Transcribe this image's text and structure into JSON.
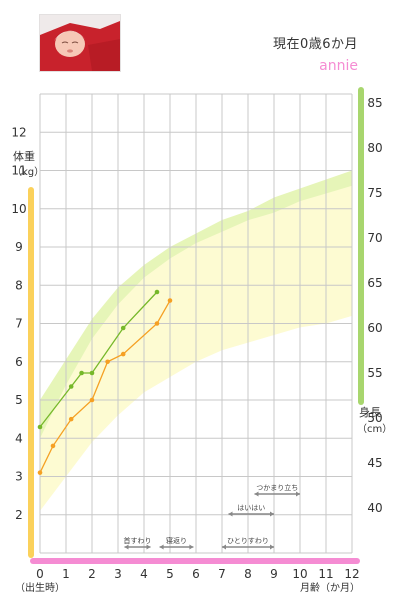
{
  "header": {
    "status_line": "現在0歳6か月",
    "child_name": "annie"
  },
  "icons": {
    "photo": "baby-photo"
  },
  "colors": {
    "weight_line": "#f5a023",
    "height_line": "#76b82a",
    "weight_band": "#fdfbd2",
    "height_band": "#e6f5b8",
    "left_axis": "#fbd15b",
    "right_axis": "#a8d66e",
    "bottom_axis": "#f58cd3"
  },
  "chart_data": {
    "type": "line",
    "x_axis": {
      "ticks": [
        "0",
        "1",
        "2",
        "3",
        "4",
        "5",
        "6",
        "7",
        "8",
        "9",
        "10",
        "11",
        "12"
      ],
      "range": [
        0,
        12
      ],
      "label_below_zero": "（出生時）",
      "label": "月齢（か月）"
    },
    "y_axis_left": {
      "title": "体重",
      "unit": "（kg）",
      "ticks": [
        "2",
        "3",
        "4",
        "5",
        "6",
        "7",
        "8",
        "9",
        "10",
        "11",
        "12"
      ],
      "range": [
        1,
        13
      ]
    },
    "y_axis_right": {
      "title": "身長",
      "unit": "（cm）",
      "ticks": [
        "40",
        "45",
        "50",
        "55",
        "60",
        "65",
        "70",
        "75",
        "80",
        "85"
      ],
      "range": [
        35,
        86
      ]
    },
    "grid": true,
    "series": [
      {
        "axis": "weight",
        "x": [
          0,
          0.5,
          1.2,
          2,
          2.6,
          3.2,
          4.5,
          5
        ],
        "y": [
          3.1,
          3.8,
          4.5,
          5.0,
          6.0,
          6.2,
          7.0,
          7.6
        ]
      },
      {
        "axis": "height",
        "x": [
          0,
          1.2,
          1.6,
          2,
          3.2,
          4.5
        ],
        "y": [
          49,
          53.5,
          55,
          55,
          60,
          64
        ]
      }
    ],
    "weight_band": {
      "x": [
        0,
        1,
        2,
        3,
        4,
        5,
        6,
        7,
        8,
        9,
        10,
        11,
        12
      ],
      "lower": [
        2.1,
        3.0,
        3.9,
        4.6,
        5.2,
        5.6,
        6.0,
        6.3,
        6.5,
        6.7,
        6.9,
        7.0,
        7.2
      ],
      "upper": [
        4.0,
        5.4,
        6.6,
        7.5,
        8.2,
        8.7,
        9.1,
        9.4,
        9.7,
        9.9,
        10.2,
        10.4,
        10.6
      ]
    },
    "height_band": {
      "x": [
        0,
        1,
        2,
        3,
        4,
        5,
        6,
        7,
        8,
        9,
        10,
        11,
        12
      ],
      "lower": [
        44.5,
        49,
        52.5,
        55.5,
        58,
        60,
        61.5,
        63,
        64.5,
        65.5,
        67,
        68,
        69.5
      ],
      "upper": [
        52,
        56.5,
        61,
        64.5,
        67,
        69,
        70.5,
        72,
        73,
        74.5,
        75.5,
        76.5,
        77.5
      ]
    },
    "milestones": [
      {
        "label": "首すわり",
        "start": 3.25,
        "end": 4.25,
        "row": 0
      },
      {
        "label": "寝返り",
        "start": 4.6,
        "end": 5.9,
        "row": 0
      },
      {
        "label": "ひとりすわり",
        "start": 7.0,
        "end": 9.0,
        "row": 0
      },
      {
        "label": "はいはい",
        "start": 7.25,
        "end": 9.0,
        "row": 1
      },
      {
        "label": "つかまり立ち",
        "start": 8.25,
        "end": 10.0,
        "row": 2
      }
    ]
  }
}
